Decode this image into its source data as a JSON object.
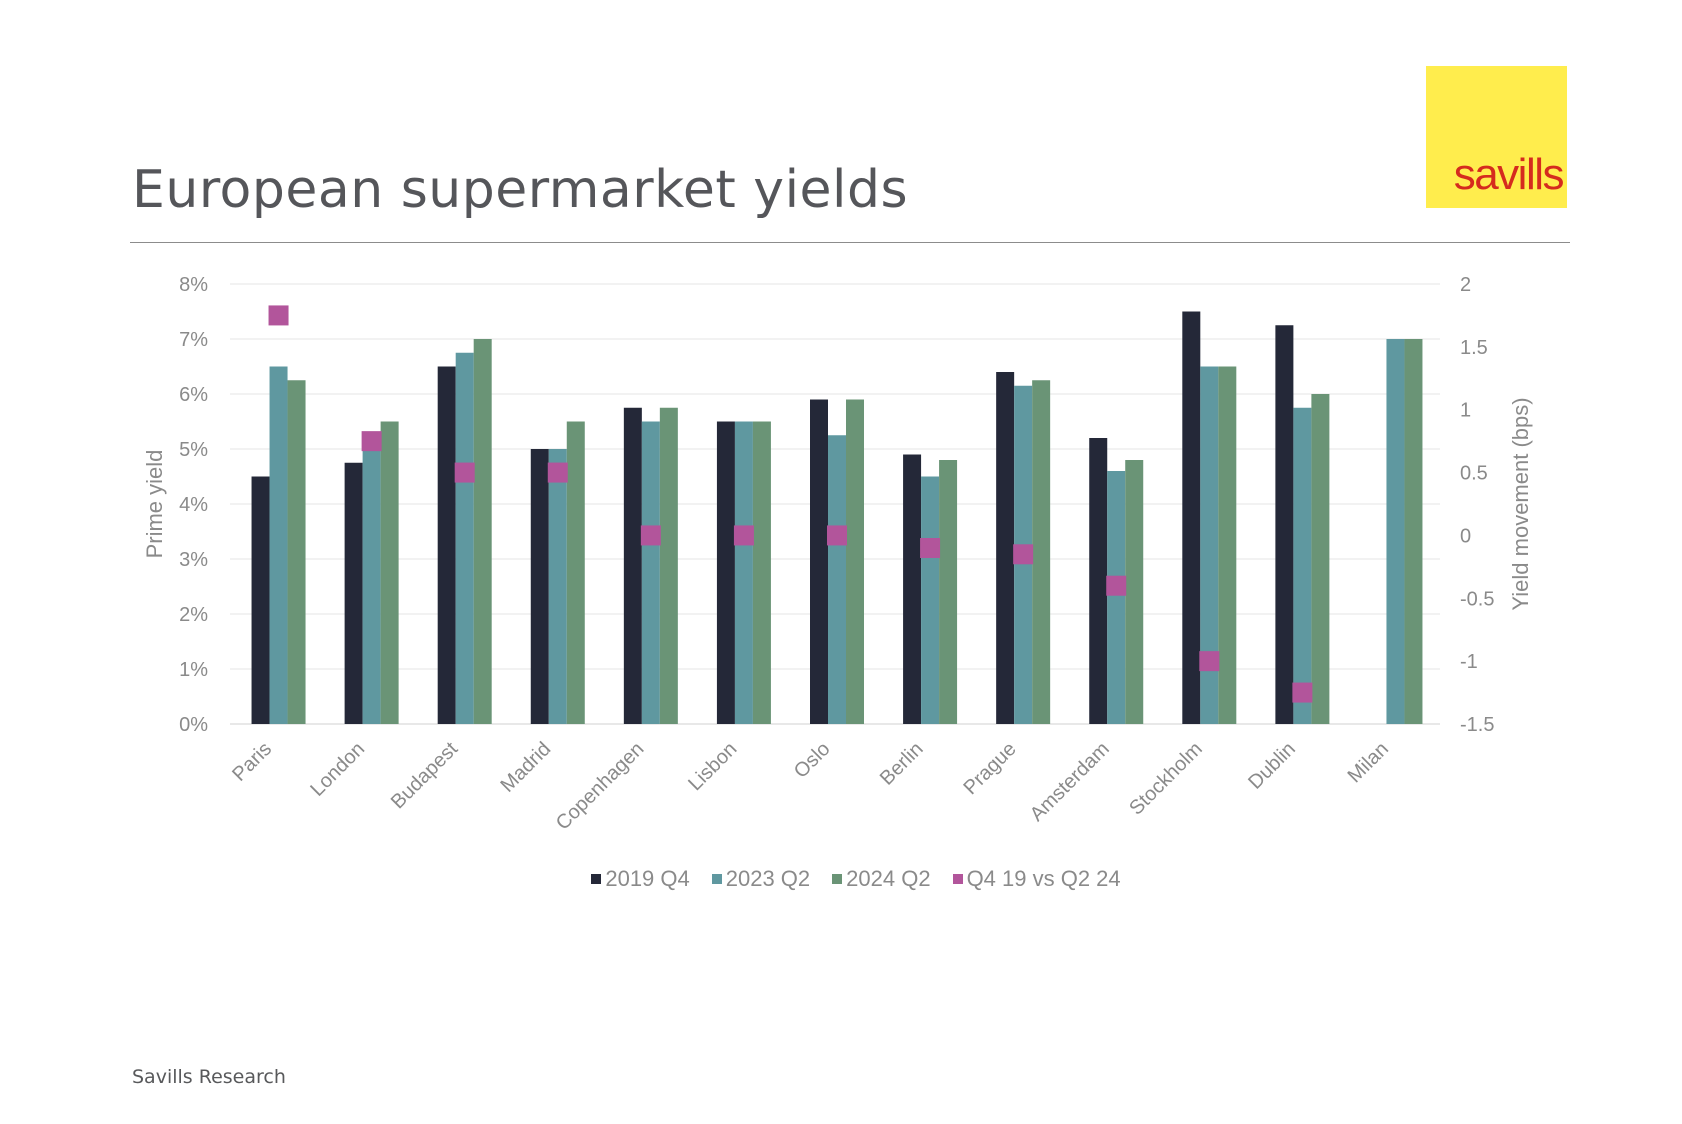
{
  "header": {
    "title": "European supermarket yields"
  },
  "logo": {
    "text": "savills"
  },
  "footer": {
    "text": "Savills Research"
  },
  "colors": {
    "series_2019": "#242838",
    "series_2023": "#5f98a0",
    "series_2024": "#6a9476",
    "movement": "#b2559b",
    "logo_bg": "#ffed4d",
    "logo_text": "#d52b1e"
  },
  "chart_data": {
    "type": "bar",
    "categories": [
      "Paris",
      "London",
      "Budapest",
      "Madrid",
      "Copenhagen",
      "Lisbon",
      "Oslo",
      "Berlin",
      "Prague",
      "Amsterdam",
      "Stockholm",
      "Dublin",
      "Milan"
    ],
    "series": [
      {
        "name": "2019 Q4",
        "axis": "left",
        "values": [
          4.5,
          4.75,
          6.5,
          5.0,
          5.75,
          5.5,
          5.9,
          4.9,
          6.4,
          5.2,
          7.5,
          7.25,
          null
        ]
      },
      {
        "name": "2023 Q2",
        "axis": "left",
        "values": [
          6.5,
          5.0,
          6.75,
          5.0,
          5.5,
          5.5,
          5.25,
          4.5,
          6.15,
          4.6,
          6.5,
          5.75,
          7.0
        ]
      },
      {
        "name": "2024 Q2",
        "axis": "left",
        "values": [
          6.25,
          5.5,
          7.0,
          5.5,
          5.75,
          5.5,
          5.9,
          4.8,
          6.25,
          4.8,
          6.5,
          6.0,
          7.0
        ]
      },
      {
        "name": "Q4 19 vs Q2 24",
        "axis": "right",
        "type": "scatter",
        "values": [
          1.75,
          0.75,
          0.5,
          0.5,
          0.0,
          0.0,
          0.0,
          -0.1,
          -0.15,
          -0.4,
          -1.0,
          -1.25,
          null
        ]
      }
    ],
    "ylabel": "Prime yield",
    "y2label": "Yield movement (bps)",
    "ylim": [
      0,
      8
    ],
    "y2lim": [
      -1.5,
      2
    ],
    "yticks": [
      "0%",
      "1%",
      "2%",
      "3%",
      "4%",
      "5%",
      "6%",
      "7%",
      "8%"
    ],
    "y2ticks": [
      "-1.5",
      "-1",
      "-0.5",
      "0",
      "0.5",
      "1",
      "1.5",
      "2"
    ],
    "grid": true,
    "legend": "bottom"
  }
}
